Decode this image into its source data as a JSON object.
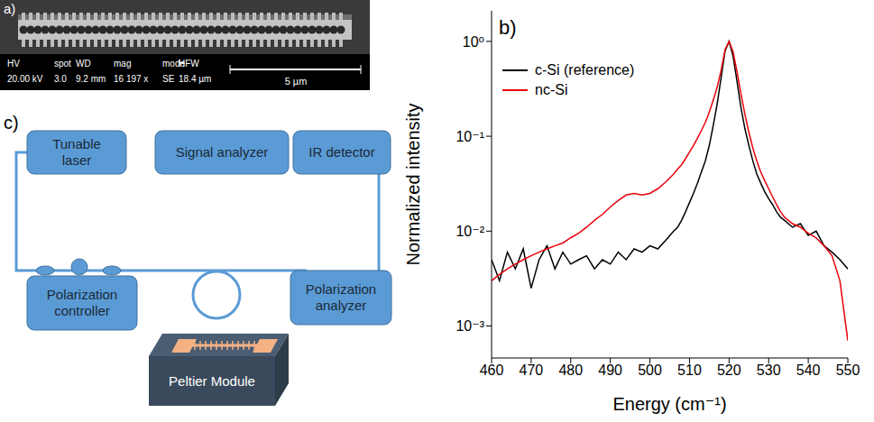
{
  "panel_a": {
    "label": "a)",
    "info_bar": {
      "headers": [
        "HV",
        "spot",
        "WD",
        "mag",
        "mode",
        "HFW"
      ],
      "values": [
        "20.00 kV",
        "3.0",
        "9.2 mm",
        "16 197 x",
        "SE",
        "18.4 µm"
      ]
    },
    "scale_bar": "5 µm"
  },
  "chart_data": {
    "type": "line",
    "panel_label": "b)",
    "x_label": "Energy (cm⁻¹)",
    "y_label": "Normalized intensity",
    "log": "y",
    "grid": false,
    "legend": "top-left",
    "xlim": [
      460,
      550
    ],
    "xticks": [
      460,
      470,
      480,
      490,
      500,
      510,
      520,
      530,
      540,
      550
    ],
    "ylim": [
      0.00046,
      2.1
    ],
    "yticks": [
      {
        "value": 0.001,
        "label": "10⁻³"
      },
      {
        "value": 0.01,
        "label": "10⁻²"
      },
      {
        "value": 0.1,
        "label": "10⁻¹"
      },
      {
        "value": 1,
        "label": "10⁰"
      }
    ],
    "x": [
      460,
      462,
      464,
      466,
      468,
      470,
      472,
      474,
      476,
      478,
      480,
      482,
      484,
      486,
      488,
      490,
      492,
      494,
      496,
      498,
      500,
      502,
      504,
      506,
      507,
      508,
      509,
      510,
      511,
      512,
      513,
      514,
      515,
      516,
      517,
      518,
      519,
      520,
      521,
      522,
      523,
      524,
      525,
      526,
      527,
      528,
      529,
      530,
      531,
      532,
      533,
      534,
      536,
      538,
      540,
      542,
      544,
      546,
      548,
      550
    ],
    "series": [
      {
        "name": "c-Si (reference)",
        "color": "#000000",
        "line_style": "solid",
        "values": [
          0.005,
          0.003,
          0.006,
          0.004,
          0.0065,
          0.0025,
          0.005,
          0.007,
          0.004,
          0.006,
          0.0045,
          0.005,
          0.0055,
          0.004,
          0.005,
          0.0045,
          0.006,
          0.005,
          0.0065,
          0.006,
          0.007,
          0.0065,
          0.008,
          0.01,
          0.011,
          0.013,
          0.016,
          0.02,
          0.025,
          0.032,
          0.042,
          0.055,
          0.08,
          0.13,
          0.22,
          0.42,
          0.8,
          1.0,
          0.7,
          0.38,
          0.2,
          0.12,
          0.08,
          0.055,
          0.04,
          0.032,
          0.026,
          0.022,
          0.019,
          0.016,
          0.014,
          0.013,
          0.011,
          0.012,
          0.009,
          0.01,
          0.007,
          0.006,
          0.005,
          0.004
        ]
      },
      {
        "name": "nc-Si",
        "color": "#e8000b",
        "line_style": "solid",
        "values": [
          0.003,
          0.0035,
          0.004,
          0.0045,
          0.005,
          0.0055,
          0.006,
          0.0065,
          0.007,
          0.0075,
          0.0085,
          0.0095,
          0.011,
          0.013,
          0.015,
          0.018,
          0.021,
          0.024,
          0.025,
          0.024,
          0.025,
          0.028,
          0.033,
          0.04,
          0.045,
          0.05,
          0.058,
          0.068,
          0.08,
          0.095,
          0.115,
          0.14,
          0.18,
          0.24,
          0.33,
          0.5,
          0.82,
          1.0,
          0.78,
          0.48,
          0.28,
          0.17,
          0.11,
          0.075,
          0.055,
          0.042,
          0.034,
          0.028,
          0.023,
          0.019,
          0.016,
          0.014,
          0.012,
          0.011,
          0.0095,
          0.0085,
          0.007,
          0.0055,
          0.003,
          0.0007
        ]
      }
    ]
  },
  "panel_c": {
    "label": "c)",
    "boxes": {
      "laser": "Tunable laser",
      "signal": "Signal analyzer",
      "detector": "IR detector",
      "controller": "Polarization controller",
      "analyzer": "Polarization analyzer",
      "peltier": "Peltier Module"
    }
  }
}
